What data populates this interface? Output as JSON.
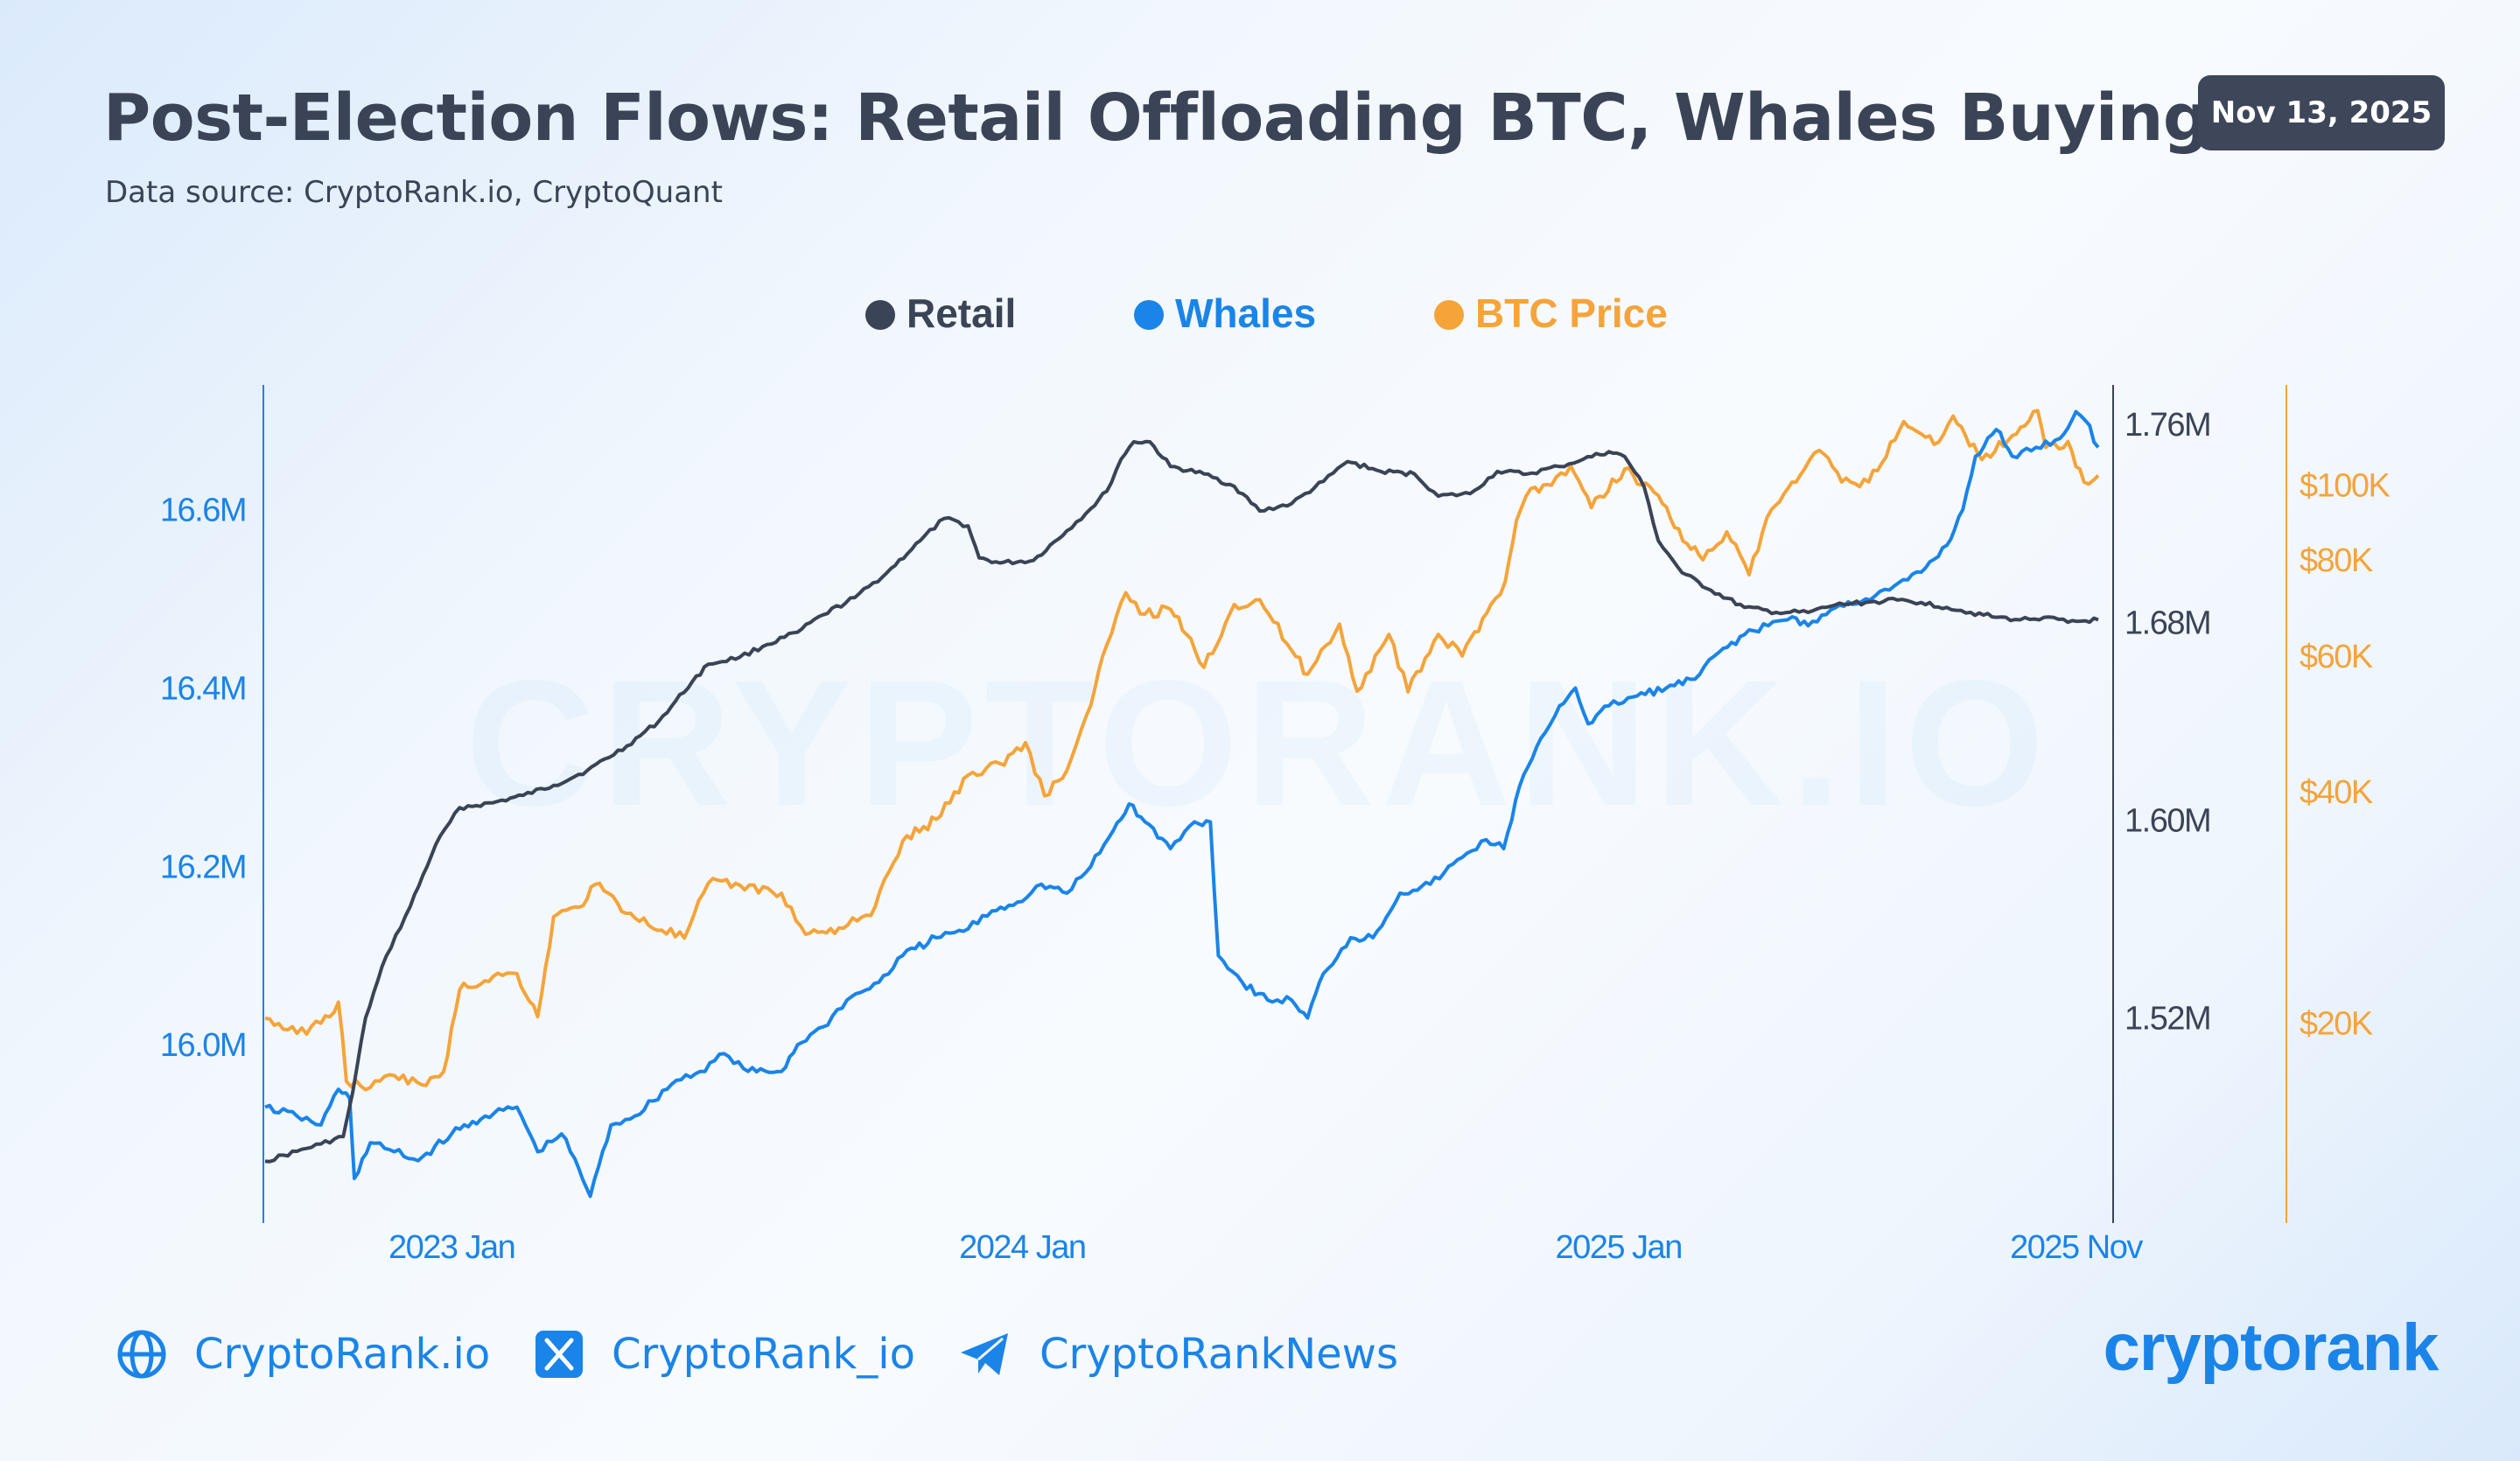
{
  "header": {
    "title": "Post-Election Flows: Retail Offloading BTC, Whales Buying",
    "subtitle": "Data source: CryptoRank.io, CryptoQuant",
    "date_badge": "Nov 13, 2025"
  },
  "colors": {
    "retail": "#3b4356",
    "whales": "#1a84e8",
    "btc": "#f5a43a",
    "title": "#3b4356",
    "badge_bg": "#3e465a"
  },
  "watermark": "CRYPTORANK.IO",
  "footer": {
    "website": "CryptoRank.io",
    "x_handle": "CryptoRank_io",
    "telegram": "CryptoRankNews",
    "brand": "cryptorank",
    "icons": [
      "globe-icon",
      "x-icon",
      "telegram-icon"
    ]
  },
  "chart_data": {
    "type": "line",
    "legend": [
      "Retail",
      "Whales",
      "BTC Price"
    ],
    "legend_position": "top-center",
    "grid": false,
    "x_ticks": [
      "2023 Jan",
      "2024 Jan",
      "2025 Jan",
      "2025 Nov"
    ],
    "x_range": [
      "2022-09-20",
      "2025-11-13"
    ],
    "axes": {
      "whales": {
        "side": "left",
        "ticks": [
          "16.0M",
          "16.2M",
          "16.4M",
          "16.6M"
        ],
        "tick_values": [
          16.0,
          16.2,
          16.4,
          16.6
        ],
        "range": [
          15.8,
          16.74
        ],
        "unit": "M"
      },
      "retail": {
        "side": "right-inner",
        "ticks": [
          "1.52M",
          "1.60M",
          "1.68M",
          "1.76M"
        ],
        "tick_values": [
          1.52,
          1.6,
          1.68,
          1.76
        ],
        "range": [
          1.437,
          1.776
        ],
        "unit": "M"
      },
      "btc": {
        "side": "right-outer",
        "scale": "log",
        "ticks": [
          "$20K",
          "$40K",
          "$60K",
          "$80K",
          "$100K"
        ],
        "tick_values": [
          20000,
          40000,
          60000,
          80000,
          100000
        ],
        "range": [
          11000,
          135000
        ]
      }
    },
    "series": [
      {
        "name": "Retail",
        "axis": "retail",
        "points": [
          [
            "2022-09-20",
            1.462
          ],
          [
            "2022-10-10",
            1.466
          ],
          [
            "2022-10-25",
            1.469
          ],
          [
            "2022-11-08",
            1.472
          ],
          [
            "2022-11-14",
            1.49
          ],
          [
            "2022-11-22",
            1.52
          ],
          [
            "2022-12-05",
            1.545
          ],
          [
            "2022-12-20",
            1.565
          ],
          [
            "2023-01-05",
            1.59
          ],
          [
            "2023-01-20",
            1.605
          ],
          [
            "2023-02-10",
            1.607
          ],
          [
            "2023-03-01",
            1.61
          ],
          [
            "2023-03-20",
            1.614
          ],
          [
            "2023-04-10",
            1.62
          ],
          [
            "2023-05-05",
            1.63
          ],
          [
            "2023-05-25",
            1.64
          ],
          [
            "2023-06-15",
            1.656
          ],
          [
            "2023-06-25",
            1.663
          ],
          [
            "2023-07-15",
            1.666
          ],
          [
            "2023-08-01",
            1.671
          ],
          [
            "2023-08-20",
            1.676
          ],
          [
            "2023-09-05",
            1.683
          ],
          [
            "2023-09-25",
            1.69
          ],
          [
            "2023-10-15",
            1.7
          ],
          [
            "2023-11-05",
            1.713
          ],
          [
            "2023-11-20",
            1.722
          ],
          [
            "2023-12-05",
            1.719
          ],
          [
            "2023-12-12",
            1.706
          ],
          [
            "2023-12-25",
            1.704
          ],
          [
            "2024-01-15",
            1.705
          ],
          [
            "2024-02-05",
            1.717
          ],
          [
            "2024-02-20",
            1.726
          ],
          [
            "2024-03-01",
            1.733
          ],
          [
            "2024-03-10",
            1.746
          ],
          [
            "2024-03-18",
            1.753
          ],
          [
            "2024-03-28",
            1.753
          ],
          [
            "2024-04-10",
            1.743
          ],
          [
            "2024-05-01",
            1.74
          ],
          [
            "2024-05-20",
            1.735
          ],
          [
            "2024-06-05",
            1.725
          ],
          [
            "2024-06-25",
            1.728
          ],
          [
            "2024-07-15",
            1.737
          ],
          [
            "2024-07-30",
            1.745
          ],
          [
            "2024-08-20",
            1.741
          ],
          [
            "2024-09-10",
            1.74
          ],
          [
            "2024-09-25",
            1.731
          ],
          [
            "2024-10-15",
            1.732
          ],
          [
            "2024-11-01",
            1.741
          ],
          [
            "2024-11-20",
            1.74
          ],
          [
            "2024-12-10",
            1.743
          ],
          [
            "2024-12-25",
            1.746
          ],
          [
            "2025-01-10",
            1.749
          ],
          [
            "2025-01-20",
            1.747
          ],
          [
            "2025-02-01",
            1.735
          ],
          [
            "2025-02-10",
            1.713
          ],
          [
            "2025-02-25",
            1.7
          ],
          [
            "2025-03-15",
            1.693
          ],
          [
            "2025-04-05",
            1.686
          ],
          [
            "2025-04-25",
            1.684
          ],
          [
            "2025-05-15",
            1.684
          ],
          [
            "2025-06-01",
            1.687
          ],
          [
            "2025-06-20",
            1.688
          ],
          [
            "2025-07-10",
            1.689
          ],
          [
            "2025-07-25",
            1.688
          ],
          [
            "2025-08-10",
            1.686
          ],
          [
            "2025-08-25",
            1.684
          ],
          [
            "2025-09-10",
            1.682
          ],
          [
            "2025-09-25",
            1.681
          ],
          [
            "2025-10-10",
            1.682
          ],
          [
            "2025-10-25",
            1.68
          ],
          [
            "2025-11-13",
            1.681
          ]
        ]
      },
      {
        "name": "Whales",
        "axis": "whales",
        "points": [
          [
            "2022-09-20",
            15.93
          ],
          [
            "2022-10-10",
            15.92
          ],
          [
            "2022-10-25",
            15.91
          ],
          [
            "2022-11-05",
            15.95
          ],
          [
            "2022-11-12",
            15.94
          ],
          [
            "2022-11-15",
            15.85
          ],
          [
            "2022-11-25",
            15.89
          ],
          [
            "2022-12-10",
            15.88
          ],
          [
            "2022-12-25",
            15.87
          ],
          [
            "2023-01-15",
            15.9
          ],
          [
            "2023-02-05",
            15.92
          ],
          [
            "2023-02-25",
            15.93
          ],
          [
            "2023-03-10",
            15.88
          ],
          [
            "2023-03-25",
            15.9
          ],
          [
            "2023-04-05",
            15.86
          ],
          [
            "2023-04-12",
            15.83
          ],
          [
            "2023-04-25",
            15.91
          ],
          [
            "2023-05-10",
            15.92
          ],
          [
            "2023-06-05",
            15.96
          ],
          [
            "2023-06-20",
            15.97
          ],
          [
            "2023-07-05",
            15.99
          ],
          [
            "2023-07-20",
            15.97
          ],
          [
            "2023-08-10",
            15.97
          ],
          [
            "2023-08-20",
            16.0
          ],
          [
            "2023-09-05",
            16.02
          ],
          [
            "2023-09-20",
            16.05
          ],
          [
            "2023-10-10",
            16.07
          ],
          [
            "2023-10-25",
            16.1
          ],
          [
            "2023-11-15",
            16.12
          ],
          [
            "2023-12-05",
            16.13
          ],
          [
            "2023-12-20",
            16.15
          ],
          [
            "2024-01-05",
            16.16
          ],
          [
            "2024-01-20",
            16.18
          ],
          [
            "2024-02-05",
            16.17
          ],
          [
            "2024-02-20",
            16.2
          ],
          [
            "2024-03-05",
            16.24
          ],
          [
            "2024-03-15",
            16.27
          ],
          [
            "2024-03-25",
            16.25
          ],
          [
            "2024-04-10",
            16.22
          ],
          [
            "2024-04-25",
            16.25
          ],
          [
            "2024-05-05",
            16.25
          ],
          [
            "2024-05-10",
            16.1
          ],
          [
            "2024-05-25",
            16.07
          ],
          [
            "2024-06-10",
            16.05
          ],
          [
            "2024-06-25",
            16.05
          ],
          [
            "2024-07-05",
            16.03
          ],
          [
            "2024-07-15",
            16.08
          ],
          [
            "2024-08-01",
            16.12
          ],
          [
            "2024-08-15",
            16.12
          ],
          [
            "2024-09-01",
            16.17
          ],
          [
            "2024-09-20",
            16.18
          ],
          [
            "2024-10-10",
            16.21
          ],
          [
            "2024-10-25",
            16.23
          ],
          [
            "2024-11-05",
            16.22
          ],
          [
            "2024-11-15",
            16.29
          ],
          [
            "2024-12-01",
            16.35
          ],
          [
            "2024-12-10",
            16.38
          ],
          [
            "2024-12-20",
            16.4
          ],
          [
            "2024-12-28",
            16.36
          ],
          [
            "2025-01-10",
            16.38
          ],
          [
            "2025-01-25",
            16.39
          ],
          [
            "2025-02-15",
            16.4
          ],
          [
            "2025-03-05",
            16.41
          ],
          [
            "2025-03-20",
            16.44
          ],
          [
            "2025-04-05",
            16.46
          ],
          [
            "2025-04-20",
            16.47
          ],
          [
            "2025-05-05",
            16.48
          ],
          [
            "2025-05-15",
            16.47
          ],
          [
            "2025-06-01",
            16.49
          ],
          [
            "2025-06-20",
            16.5
          ],
          [
            "2025-07-05",
            16.51
          ],
          [
            "2025-07-25",
            16.53
          ],
          [
            "2025-08-10",
            16.56
          ],
          [
            "2025-08-20",
            16.6
          ],
          [
            "2025-08-28",
            16.66
          ],
          [
            "2025-09-10",
            16.69
          ],
          [
            "2025-09-20",
            16.66
          ],
          [
            "2025-10-05",
            16.67
          ],
          [
            "2025-10-20",
            16.68
          ],
          [
            "2025-10-30",
            16.71
          ],
          [
            "2025-11-05",
            16.7
          ],
          [
            "2025-11-13",
            16.67
          ]
        ]
      },
      {
        "name": "BTC Price",
        "axis": "btc",
        "points": [
          [
            "2022-09-20",
            20300
          ],
          [
            "2022-10-10",
            19400
          ],
          [
            "2022-10-25",
            20000
          ],
          [
            "2022-11-05",
            21300
          ],
          [
            "2022-11-10",
            16800
          ],
          [
            "2022-11-25",
            16500
          ],
          [
            "2022-12-10",
            17100
          ],
          [
            "2022-12-30",
            16600
          ],
          [
            "2023-01-10",
            17300
          ],
          [
            "2023-01-20",
            22100
          ],
          [
            "2023-02-10",
            23000
          ],
          [
            "2023-02-25",
            23200
          ],
          [
            "2023-03-10",
            20400
          ],
          [
            "2023-03-20",
            27500
          ],
          [
            "2023-04-05",
            28300
          ],
          [
            "2023-04-15",
            30300
          ],
          [
            "2023-05-10",
            27400
          ],
          [
            "2023-06-10",
            25800
          ],
          [
            "2023-06-25",
            30400
          ],
          [
            "2023-07-15",
            30200
          ],
          [
            "2023-08-10",
            29500
          ],
          [
            "2023-08-25",
            26100
          ],
          [
            "2023-09-15",
            26600
          ],
          [
            "2023-10-05",
            27600
          ],
          [
            "2023-10-25",
            34500
          ],
          [
            "2023-11-15",
            36800
          ],
          [
            "2023-12-05",
            42000
          ],
          [
            "2023-12-25",
            43500
          ],
          [
            "2024-01-10",
            46300
          ],
          [
            "2024-01-22",
            39500
          ],
          [
            "2024-02-05",
            42600
          ],
          [
            "2024-02-20",
            51800
          ],
          [
            "2024-03-01",
            62000
          ],
          [
            "2024-03-13",
            72500
          ],
          [
            "2024-03-25",
            68000
          ],
          [
            "2024-04-10",
            69000
          ],
          [
            "2024-04-20",
            64000
          ],
          [
            "2024-05-01",
            58000
          ],
          [
            "2024-05-20",
            70000
          ],
          [
            "2024-06-05",
            71000
          ],
          [
            "2024-06-25",
            61000
          ],
          [
            "2024-07-05",
            56800
          ],
          [
            "2024-07-25",
            66000
          ],
          [
            "2024-08-05",
            54000
          ],
          [
            "2024-08-25",
            64000
          ],
          [
            "2024-09-06",
            53900
          ],
          [
            "2024-09-25",
            64000
          ],
          [
            "2024-10-10",
            60000
          ],
          [
            "2024-10-28",
            70000
          ],
          [
            "2024-11-06",
            75000
          ],
          [
            "2024-11-13",
            90000
          ],
          [
            "2024-11-22",
            99000
          ],
          [
            "2024-12-05",
            100000
          ],
          [
            "2024-12-17",
            106000
          ],
          [
            "2024-12-30",
            93500
          ],
          [
            "2025-01-20",
            105000
          ],
          [
            "2025-02-10",
            97000
          ],
          [
            "2025-02-28",
            84000
          ],
          [
            "2025-03-10",
            80000
          ],
          [
            "2025-03-25",
            87000
          ],
          [
            "2025-04-08",
            76500
          ],
          [
            "2025-04-22",
            93000
          ],
          [
            "2025-05-10",
            103000
          ],
          [
            "2025-05-22",
            111000
          ],
          [
            "2025-06-05",
            101000
          ],
          [
            "2025-06-22",
            101000
          ],
          [
            "2025-07-14",
            121000
          ],
          [
            "2025-08-02",
            113000
          ],
          [
            "2025-08-14",
            123000
          ],
          [
            "2025-09-01",
            108000
          ],
          [
            "2025-09-20",
            116000
          ],
          [
            "2025-10-06",
            125000
          ],
          [
            "2025-10-11",
            112000
          ],
          [
            "2025-10-25",
            114000
          ],
          [
            "2025-11-04",
            101000
          ],
          [
            "2025-11-13",
            103000
          ]
        ]
      }
    ]
  }
}
